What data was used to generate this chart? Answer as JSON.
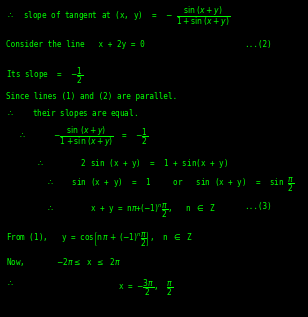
{
  "bg_color": "#000000",
  "text_color": "#00ff00",
  "figsize": [
    3.08,
    3.17
  ],
  "dpi": 100,
  "font_family": "monospace",
  "font_size": 5.5
}
